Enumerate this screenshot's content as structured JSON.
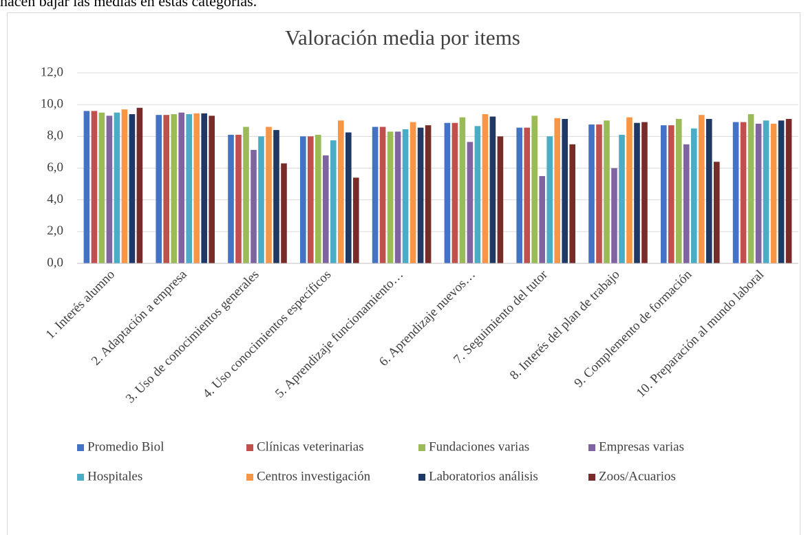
{
  "text_above": "hacen bajar las medias en estas categorías.",
  "chart_data": {
    "type": "bar",
    "title": "Valoración media por items",
    "categories": [
      "1. Interés alumno",
      "2. Adaptación a empresa",
      "3. Uso de conocimientos generales",
      "4. Uso conocimientos específicos",
      "5. Aprendizaje funcionamiento…",
      "6. Aprendizaje nuevos…",
      "7. Seguimiento del tutor",
      "8. Interés del plan de trabajo",
      "9. Complemento de formación",
      "10. Preparación al mundo laboral"
    ],
    "series": [
      {
        "name": "Promedio Biol",
        "color": "#4472c4",
        "values": [
          9.6,
          9.35,
          8.1,
          8.0,
          8.6,
          8.85,
          8.55,
          8.75,
          8.7,
          8.9
        ]
      },
      {
        "name": "Clínicas veterinarias",
        "color": "#c0504d",
        "values": [
          9.6,
          9.35,
          8.1,
          8.0,
          8.6,
          8.85,
          8.55,
          8.75,
          8.7,
          8.9
        ]
      },
      {
        "name": "Fundaciones varias",
        "color": "#9bbb59",
        "values": [
          9.5,
          9.4,
          8.6,
          8.1,
          8.3,
          9.2,
          9.3,
          9.0,
          9.1,
          9.4
        ]
      },
      {
        "name": "Empresas varias",
        "color": "#8064a2",
        "values": [
          9.3,
          9.5,
          7.15,
          6.8,
          8.3,
          7.65,
          5.5,
          6.0,
          7.5,
          8.8
        ]
      },
      {
        "name": "Hospitales",
        "color": "#4bacc6",
        "values": [
          9.5,
          9.4,
          8.0,
          7.75,
          8.45,
          8.65,
          8.0,
          8.1,
          8.5,
          9.0
        ]
      },
      {
        "name": "Centros investigación",
        "color": "#f79646",
        "values": [
          9.7,
          9.45,
          8.6,
          9.0,
          8.9,
          9.4,
          9.15,
          9.2,
          9.35,
          8.8
        ]
      },
      {
        "name": "Laboratorios análisis",
        "color": "#203864",
        "values": [
          9.4,
          9.45,
          8.4,
          8.25,
          8.55,
          9.25,
          9.1,
          8.85,
          9.1,
          9.0
        ]
      },
      {
        "name": "Zoos/Acuarios",
        "color": "#772c2a",
        "values": [
          9.8,
          9.3,
          6.3,
          5.4,
          8.7,
          8.0,
          7.5,
          8.9,
          6.4,
          9.1
        ]
      }
    ],
    "ylim": [
      0,
      12
    ],
    "yticks": [
      {
        "value": 0,
        "label": "0,0"
      },
      {
        "value": 2,
        "label": "2,0"
      },
      {
        "value": 4,
        "label": "4,0"
      },
      {
        "value": 6,
        "label": "6,0"
      },
      {
        "value": 8,
        "label": "8,0"
      },
      {
        "value": 10,
        "label": "10,0"
      },
      {
        "value": 12,
        "label": "12,0"
      }
    ],
    "grid": true,
    "legend": "bottom"
  }
}
